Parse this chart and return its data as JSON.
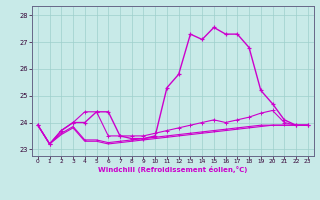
{
  "xlabel": "Windchill (Refroidissement éolien,°C)",
  "background_color": "#c8eae8",
  "grid_color": "#9ecfcc",
  "line_color": "#cc00cc",
  "xlim": [
    -0.5,
    23.5
  ],
  "ylim": [
    22.75,
    28.35
  ],
  "xticks": [
    0,
    1,
    2,
    3,
    4,
    5,
    6,
    7,
    8,
    9,
    10,
    11,
    12,
    13,
    14,
    15,
    16,
    17,
    18,
    19,
    20,
    21,
    22,
    23
  ],
  "yticks": [
    23,
    24,
    25,
    26,
    27,
    28
  ],
  "curves": [
    {
      "x": [
        0,
        1,
        2,
        3,
        4,
        5,
        6,
        7,
        8,
        9,
        10,
        11,
        12,
        13,
        14,
        15,
        16,
        17,
        18,
        19,
        20,
        21,
        22,
        23
      ],
      "y": [
        23.9,
        23.2,
        23.7,
        24.0,
        24.0,
        24.4,
        24.4,
        23.5,
        23.4,
        23.4,
        23.5,
        25.3,
        25.8,
        27.3,
        27.1,
        27.55,
        27.3,
        27.3,
        26.8,
        25.2,
        24.7,
        24.1,
        23.9,
        23.9
      ],
      "lw": 1.0,
      "ms": 3.0
    },
    {
      "x": [
        0,
        1,
        2,
        3,
        4,
        5,
        6,
        7,
        8,
        9,
        10,
        11,
        12,
        13,
        14,
        15,
        16,
        17,
        18,
        19,
        20,
        21,
        22,
        23
      ],
      "y": [
        23.9,
        23.2,
        23.7,
        24.0,
        24.4,
        24.4,
        23.5,
        23.5,
        23.5,
        23.5,
        23.6,
        23.7,
        23.8,
        23.9,
        24.0,
        24.1,
        24.0,
        24.1,
        24.2,
        24.35,
        24.45,
        24.0,
        23.9,
        23.9
      ],
      "lw": 0.8,
      "ms": 2.5
    },
    {
      "x": [
        0,
        1,
        2,
        3,
        4,
        5,
        6,
        7,
        8,
        9,
        10,
        11,
        12,
        13,
        14,
        15,
        16,
        17,
        18,
        19,
        20,
        21,
        22,
        23
      ],
      "y": [
        23.9,
        23.2,
        23.6,
        23.85,
        23.35,
        23.35,
        23.25,
        23.3,
        23.35,
        23.4,
        23.45,
        23.5,
        23.55,
        23.6,
        23.65,
        23.7,
        23.75,
        23.8,
        23.85,
        23.9,
        23.9,
        23.9,
        23.9,
        23.9
      ],
      "lw": 0.8,
      "ms": 2.0
    },
    {
      "x": [
        0,
        1,
        2,
        3,
        4,
        5,
        6,
        7,
        8,
        9,
        10,
        11,
        12,
        13,
        14,
        15,
        16,
        17,
        18,
        19,
        20,
        21,
        22,
        23
      ],
      "y": [
        23.9,
        23.2,
        23.55,
        23.8,
        23.3,
        23.3,
        23.2,
        23.25,
        23.3,
        23.35,
        23.4,
        23.45,
        23.5,
        23.55,
        23.6,
        23.65,
        23.7,
        23.75,
        23.8,
        23.85,
        23.9,
        23.9,
        23.9,
        23.9
      ],
      "lw": 0.8,
      "ms": 0
    }
  ]
}
